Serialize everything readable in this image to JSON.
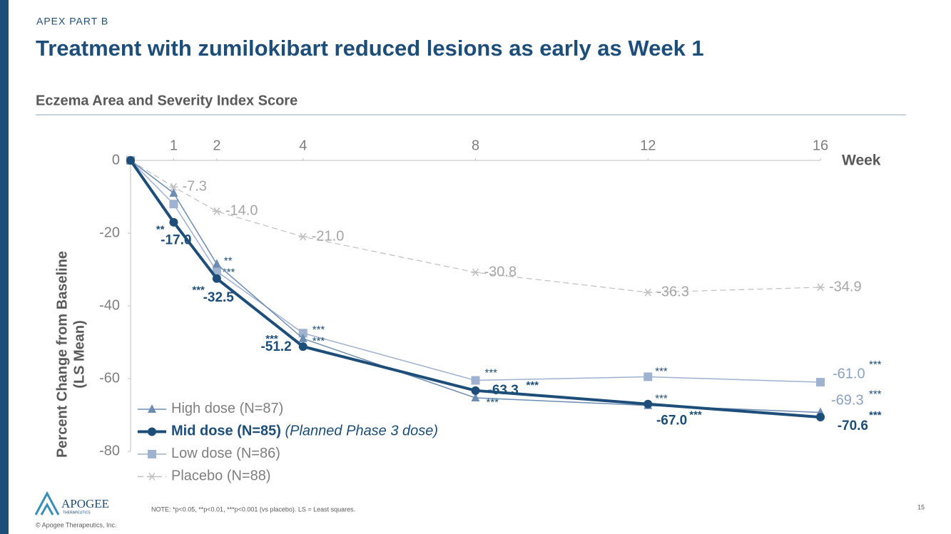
{
  "slide": {
    "eyebrow": "APEX PART B",
    "title": "Treatment with zumilokibart reduced lesions as early as Week 1",
    "logo": "APOGEE",
    "logo_sub": "THERAPEUTICS",
    "copyright": "© Apogee Therapeutics, Inc.",
    "footnote": "NOTE: *p<0.05, **p<0.01, ***p<0.001 (vs placebo). LS = Least squares.",
    "page": "15"
  },
  "chart_data": {
    "type": "line",
    "title": "Eczema Area and Severity Index Score",
    "ylabel": [
      "Percent Change from Baseline",
      "(LS Mean)"
    ],
    "xlabel": "Week",
    "x": [
      0,
      1,
      2,
      4,
      8,
      12,
      16
    ],
    "xlim": [
      0,
      16
    ],
    "xticks": [
      1,
      2,
      4,
      8,
      12,
      16
    ],
    "ylim": [
      -80,
      0
    ],
    "yticks": [
      0,
      -20,
      -40,
      -60,
      -80
    ],
    "legend": "lower-left",
    "series": [
      {
        "name": "High dose (N=87)",
        "color": "#6d8cb4",
        "marker": "triangle",
        "values": [
          0,
          -9,
          -28.5,
          -49,
          -65.3,
          -67.4,
          -69.3
        ],
        "value_labels": [
          null,
          null,
          null,
          null,
          null,
          null,
          "-69.3"
        ],
        "significance": [
          null,
          null,
          "**",
          "***",
          "***",
          "***",
          "***"
        ]
      },
      {
        "name": "Mid dose (N=85)",
        "note": "(Planned Phase 3 dose)",
        "color": "#1d4e79",
        "marker": "circle",
        "values": [
          0,
          -17.0,
          -32.5,
          -51.2,
          -63.3,
          -67.0,
          -70.6
        ],
        "value_labels": [
          null,
          "-17.0",
          "-32.5",
          "-51.2",
          "-63.3",
          "-67.0",
          "-70.6"
        ],
        "significance": [
          null,
          "**",
          "***",
          "***",
          "***",
          "***",
          "***"
        ]
      },
      {
        "name": "Low dose (N=86)",
        "color": "#9fb2cf",
        "marker": "square",
        "values": [
          0,
          -12,
          -30.5,
          -47.5,
          -60.5,
          -59.5,
          -61.0
        ],
        "value_labels": [
          null,
          null,
          null,
          null,
          null,
          null,
          "-61.0"
        ],
        "significance": [
          null,
          null,
          "***",
          "***",
          "***",
          "***",
          "***"
        ]
      },
      {
        "name": "Placebo (N=88)",
        "color": "#bfbfbf",
        "marker": "star",
        "dashed": true,
        "values": [
          0,
          -7.3,
          -14.0,
          -21.0,
          -30.8,
          -36.3,
          -34.9
        ],
        "value_labels": [
          null,
          "-7.3",
          "-14.0",
          "-21.0",
          "-30.8",
          "-36.3",
          "-34.9"
        ],
        "significance": [
          null,
          null,
          null,
          null,
          null,
          null,
          null
        ]
      }
    ]
  }
}
